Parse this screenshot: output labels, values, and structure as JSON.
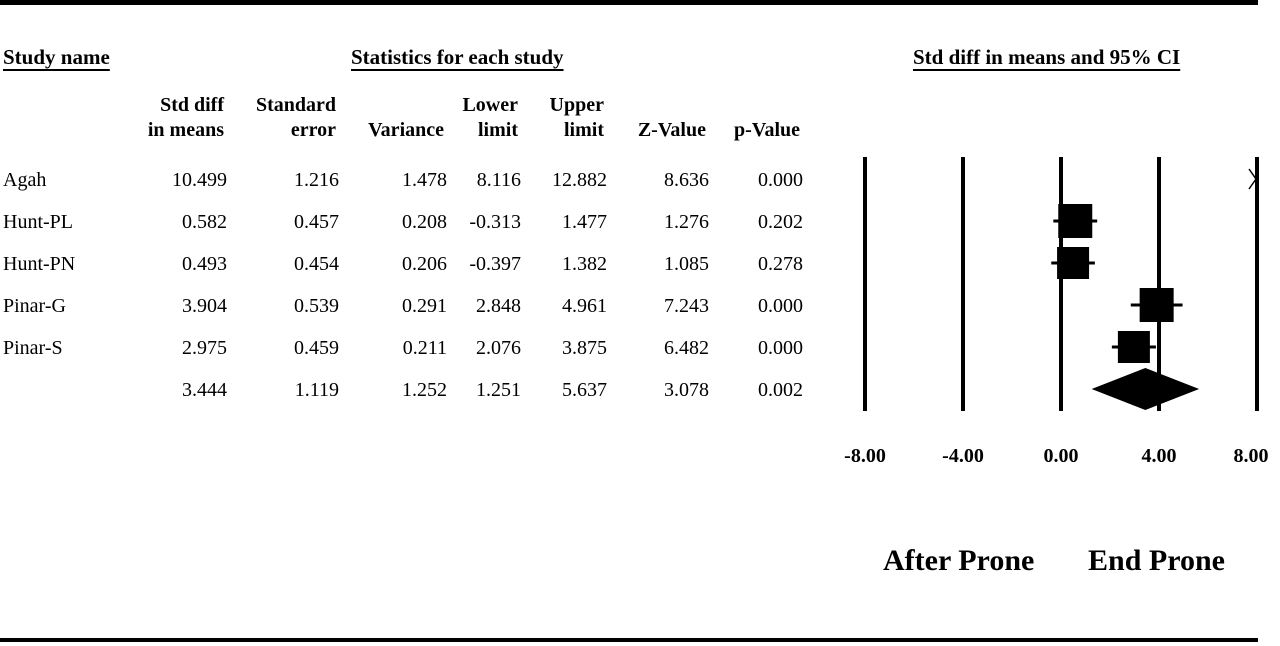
{
  "headers": {
    "study_name": "Study name",
    "statistics": "Statistics for each study",
    "plot_title": "Std diff in means and 95% CI"
  },
  "columns": [
    {
      "line1": "Std diff",
      "line2": "in means"
    },
    {
      "line1": "Standard",
      "line2": "error"
    },
    {
      "line1": "",
      "line2": "Variance"
    },
    {
      "line1": "Lower",
      "line2": "limit"
    },
    {
      "line1": "Upper",
      "line2": "limit"
    },
    {
      "line1": "",
      "line2": "Z-Value"
    },
    {
      "line1": "",
      "line2": "p-Value"
    }
  ],
  "rows": [
    {
      "name": "Agah",
      "values": [
        "10.499",
        "1.216",
        "1.478",
        "8.116",
        "12.882",
        "8.636",
        "0.000"
      ]
    },
    {
      "name": "Hunt-PL",
      "values": [
        "0.582",
        "0.457",
        "0.208",
        "-0.313",
        "1.477",
        "1.276",
        "0.202"
      ]
    },
    {
      "name": "Hunt-PN",
      "values": [
        "0.493",
        "0.454",
        "0.206",
        "-0.397",
        "1.382",
        "1.085",
        "0.278"
      ]
    },
    {
      "name": "Pinar-G",
      "values": [
        "3.904",
        "0.539",
        "0.291",
        "2.848",
        "4.961",
        "7.243",
        "0.000"
      ]
    },
    {
      "name": "Pinar-S",
      "values": [
        "2.975",
        "0.459",
        "0.211",
        "2.076",
        "3.875",
        "6.482",
        "0.000"
      ]
    },
    {
      "name": "",
      "values": [
        "3.444",
        "1.119",
        "1.252",
        "1.251",
        "5.637",
        "3.078",
        "0.002"
      ]
    }
  ],
  "chart_data": {
    "type": "forest",
    "title": "Std diff in means and 95% CI",
    "xlim": [
      -8,
      8
    ],
    "ticks": [
      -8,
      -4,
      0,
      4,
      8
    ],
    "tick_labels": [
      "-8.00",
      "-4.00",
      "0.00",
      "4.00",
      "8.00"
    ],
    "studies": [
      {
        "name": "Agah",
        "effect": 10.499,
        "lower": 8.116,
        "upper": 12.882,
        "offscale": true
      },
      {
        "name": "Hunt-PL",
        "effect": 0.582,
        "lower": -0.313,
        "upper": 1.477
      },
      {
        "name": "Hunt-PN",
        "effect": 0.493,
        "lower": -0.397,
        "upper": 1.382
      },
      {
        "name": "Pinar-G",
        "effect": 3.904,
        "lower": 2.848,
        "upper": 4.961
      },
      {
        "name": "Pinar-S",
        "effect": 2.975,
        "lower": 2.076,
        "upper": 3.875
      }
    ],
    "summary": {
      "effect": 3.444,
      "lower": 1.251,
      "upper": 5.637
    },
    "direction_labels": {
      "left": "After Prone",
      "right": "End Prone"
    }
  }
}
